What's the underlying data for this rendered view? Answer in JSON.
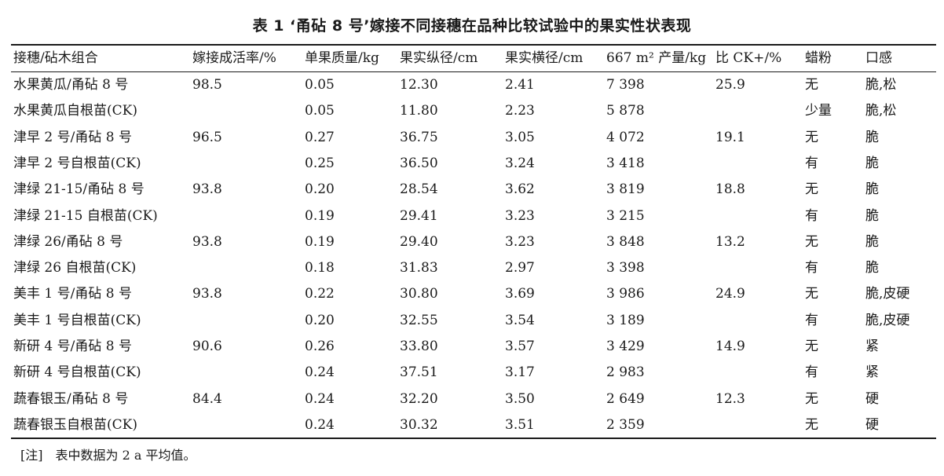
{
  "table": {
    "title": "表 1 ‘甬砧 8 号’嫁接不同接穗在品种比较试验中的果实性状表现",
    "headers": [
      "接穗/砧木组合",
      "嫁接成活率/%",
      "单果质量/kg",
      "果实纵径/cm",
      "果实横径/cm",
      "667 m² 产量/kg",
      "比 CK+/%",
      "蜡粉",
      "口感"
    ],
    "rows": [
      [
        "水果黄瓜/甬砧 8 号",
        "98.5",
        "0.05",
        "12.30",
        "2.41",
        "7 398",
        "25.9",
        "无",
        "脆,松"
      ],
      [
        "水果黄瓜自根苗(CK)",
        "",
        "0.05",
        "11.80",
        "2.23",
        "5 878",
        "",
        "少量",
        "脆,松"
      ],
      [
        "津早 2 号/甬砧 8 号",
        "96.5",
        "0.27",
        "36.75",
        "3.05",
        "4 072",
        "19.1",
        "无",
        "脆"
      ],
      [
        "津早 2 号自根苗(CK)",
        "",
        "0.25",
        "36.50",
        "3.24",
        "3 418",
        "",
        "有",
        "脆"
      ],
      [
        "津绿 21-15/甬砧 8 号",
        "93.8",
        "0.20",
        "28.54",
        "3.62",
        "3 819",
        "18.8",
        "无",
        "脆"
      ],
      [
        "津绿 21-15 自根苗(CK)",
        "",
        "0.19",
        "29.41",
        "3.23",
        "3 215",
        "",
        "有",
        "脆"
      ],
      [
        "津绿 26/甬砧 8 号",
        "93.8",
        "0.19",
        "29.40",
        "3.23",
        "3 848",
        "13.2",
        "无",
        "脆"
      ],
      [
        "津绿 26 自根苗(CK)",
        "",
        "0.18",
        "31.83",
        "2.97",
        "3 398",
        "",
        "有",
        "脆"
      ],
      [
        "美丰 1 号/甬砧 8 号",
        "93.8",
        "0.22",
        "30.80",
        "3.69",
        "3 986",
        "24.9",
        "无",
        "脆,皮硬"
      ],
      [
        "美丰 1 号自根苗(CK)",
        "",
        "0.20",
        "32.55",
        "3.54",
        "3 189",
        "",
        "有",
        "脆,皮硬"
      ],
      [
        "新研 4 号/甬砧 8 号",
        "90.6",
        "0.26",
        "33.80",
        "3.57",
        "3 429",
        "14.9",
        "无",
        "紧"
      ],
      [
        "新研 4 号自根苗(CK)",
        "",
        "0.24",
        "37.51",
        "3.17",
        "2 983",
        "",
        "有",
        "紧"
      ],
      [
        "蔬春银玉/甬砧 8 号",
        "84.4",
        "0.24",
        "32.20",
        "3.50",
        "2 649",
        "12.3",
        "无",
        "硬"
      ],
      [
        "蔬春银玉自根苗(CK)",
        "",
        "0.24",
        "30.32",
        "3.51",
        "2 359",
        "",
        "无",
        "硬"
      ]
    ],
    "note": "[注]　表中数据为 2 a 平均值。"
  }
}
